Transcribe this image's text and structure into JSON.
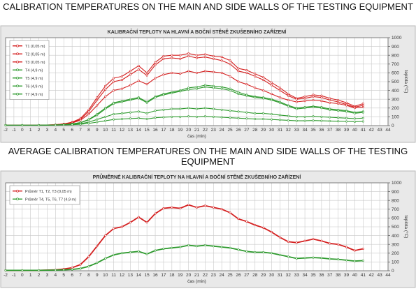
{
  "titles": {
    "top": "CALIBRATION TEMPERATURES ON THE MAIN AND SIDE WALLS OF THE TESTING EQUIPMENT",
    "bottom": "AVERAGE CALIBRATION TEMPERATURES ON THE MAIN AND SIDE WALLS OF THE TESTING EQUIPMENT"
  },
  "chart_data": [
    {
      "type": "line",
      "title": "KALIBRAČNÍ TEPLOTY NA HLAVNÍ A BOČNÍ STĚNĚ ZKUŠEBNÍHO ZAŘÍZENÍ",
      "xlabel": "čas (min)",
      "ylabel": "teplota (°C)",
      "xlim": [
        -2,
        44
      ],
      "ylim": [
        0,
        1000
      ],
      "xticks": [
        -2,
        -1,
        0,
        1,
        2,
        3,
        4,
        5,
        6,
        7,
        8,
        9,
        10,
        11,
        12,
        13,
        14,
        15,
        16,
        17,
        18,
        19,
        20,
        21,
        22,
        23,
        24,
        25,
        26,
        27,
        28,
        29,
        30,
        31,
        32,
        33,
        34,
        35,
        36,
        37,
        38,
        39,
        40,
        41,
        42,
        43,
        44
      ],
      "yticks": [
        0,
        100,
        200,
        300,
        400,
        500,
        600,
        700,
        800,
        900,
        1000
      ],
      "grid": true,
      "legend_position": "top-left",
      "x": [
        -2,
        0,
        2,
        4,
        5,
        6,
        7,
        8,
        9,
        10,
        11,
        12,
        13,
        14,
        15,
        16,
        17,
        18,
        19,
        20,
        21,
        22,
        23,
        24,
        25,
        26,
        27,
        28,
        29,
        30,
        31,
        32,
        33,
        34,
        35,
        36,
        37,
        38,
        39,
        40,
        41
      ],
      "series": [
        {
          "name": "T1 (0,05 m)",
          "color": "#d42020",
          "values": [
            5,
            5,
            5,
            10,
            20,
            40,
            80,
            180,
            320,
            450,
            540,
            560,
            620,
            680,
            600,
            720,
            790,
            800,
            800,
            820,
            800,
            810,
            790,
            780,
            740,
            650,
            630,
            590,
            550,
            490,
            430,
            360,
            310,
            330,
            350,
            340,
            310,
            290,
            260,
            220,
            250
          ]
        },
        {
          "name": "T2 (0,05 m)",
          "color": "#d42020",
          "values": [
            5,
            5,
            5,
            10,
            20,
            35,
            70,
            160,
            290,
            410,
            500,
            520,
            580,
            640,
            570,
            690,
            760,
            770,
            760,
            790,
            770,
            780,
            760,
            740,
            700,
            620,
            600,
            560,
            520,
            460,
            400,
            340,
            300,
            310,
            330,
            320,
            290,
            270,
            240,
            210,
            230
          ]
        },
        {
          "name": "T3 (0,05 m)",
          "color": "#d42020",
          "values": [
            5,
            5,
            5,
            8,
            15,
            30,
            60,
            130,
            230,
            330,
            400,
            420,
            460,
            510,
            470,
            540,
            580,
            600,
            590,
            620,
            600,
            620,
            610,
            600,
            560,
            500,
            470,
            430,
            400,
            360,
            320,
            290,
            270,
            280,
            290,
            280,
            260,
            250,
            230,
            200,
            210
          ]
        },
        {
          "name": "T4 (4,9 m)",
          "color": "#2e9a2e",
          "values": [
            5,
            5,
            5,
            8,
            12,
            20,
            35,
            70,
            130,
            200,
            260,
            280,
            300,
            320,
            270,
            330,
            360,
            380,
            400,
            430,
            440,
            460,
            450,
            440,
            420,
            380,
            350,
            330,
            320,
            300,
            270,
            230,
            200,
            210,
            220,
            210,
            190,
            180,
            170,
            150,
            160
          ]
        },
        {
          "name": "T5 (4,9 m)",
          "color": "#2e9a2e",
          "values": [
            5,
            5,
            5,
            8,
            12,
            18,
            32,
            65,
            120,
            190,
            250,
            270,
            290,
            310,
            260,
            320,
            350,
            370,
            390,
            410,
            420,
            440,
            430,
            420,
            400,
            360,
            340,
            320,
            310,
            290,
            260,
            220,
            190,
            200,
            210,
            200,
            180,
            170,
            160,
            140,
            150
          ]
        },
        {
          "name": "T6 (4,9 m)",
          "color": "#2e9a2e",
          "values": [
            5,
            5,
            5,
            6,
            10,
            14,
            22,
            40,
            70,
            100,
            130,
            140,
            150,
            160,
            140,
            170,
            180,
            190,
            190,
            200,
            190,
            200,
            190,
            180,
            170,
            160,
            150,
            140,
            140,
            130,
            120,
            110,
            100,
            100,
            105,
            100,
            95,
            90,
            85,
            80,
            85
          ]
        },
        {
          "name": "T7 (4,9 m)",
          "color": "#2e9a2e",
          "values": [
            5,
            5,
            5,
            6,
            8,
            10,
            15,
            25,
            40,
            55,
            70,
            75,
            80,
            85,
            75,
            90,
            95,
            100,
            100,
            105,
            100,
            105,
            100,
            95,
            90,
            85,
            80,
            75,
            75,
            70,
            65,
            60,
            55,
            55,
            58,
            55,
            52,
            50,
            48,
            45,
            48
          ]
        }
      ]
    },
    {
      "type": "line",
      "title": "PRŮMĚRNÉ KALIBRAČNÍ TEPLOTY NA HLAVNÍ A BOČNÍ STĚNĚ ZKUŠEBNÍHO ZAŘÍZENÍ",
      "xlabel": "čas (min)",
      "ylabel": "teplota (°C)",
      "xlim": [
        -2,
        44
      ],
      "ylim": [
        0,
        1000
      ],
      "xticks": [
        -2,
        -1,
        0,
        1,
        2,
        3,
        4,
        5,
        6,
        7,
        8,
        9,
        10,
        11,
        12,
        13,
        14,
        15,
        16,
        17,
        18,
        19,
        20,
        21,
        22,
        23,
        24,
        25,
        26,
        27,
        28,
        29,
        30,
        31,
        32,
        33,
        34,
        35,
        36,
        37,
        38,
        39,
        40,
        41,
        42,
        43,
        44
      ],
      "yticks": [
        0,
        100,
        200,
        300,
        400,
        500,
        600,
        700,
        800,
        900,
        1000
      ],
      "grid": true,
      "legend_position": "top-left",
      "x": [
        -2,
        0,
        2,
        4,
        5,
        6,
        7,
        8,
        9,
        10,
        11,
        12,
        13,
        14,
        15,
        16,
        17,
        18,
        19,
        20,
        21,
        22,
        23,
        24,
        25,
        26,
        27,
        28,
        29,
        30,
        31,
        32,
        33,
        34,
        35,
        36,
        37,
        38,
        39,
        40,
        41
      ],
      "series": [
        {
          "name": "Průměr T1, T2, T3 (0,05 m)",
          "color": "#d42020",
          "values": [
            5,
            5,
            5,
            10,
            20,
            35,
            70,
            160,
            280,
            400,
            480,
            500,
            550,
            610,
            550,
            650,
            710,
            720,
            710,
            750,
            720,
            740,
            720,
            700,
            660,
            590,
            560,
            520,
            490,
            440,
            380,
            330,
            320,
            340,
            360,
            340,
            310,
            300,
            270,
            230,
            250
          ]
        },
        {
          "name": "Průměr T4, T5, T6, T7 (4,9 m)",
          "color": "#2e9a2e",
          "values": [
            5,
            5,
            5,
            8,
            10,
            15,
            25,
            50,
            90,
            140,
            180,
            200,
            210,
            220,
            190,
            230,
            250,
            260,
            270,
            290,
            280,
            290,
            280,
            270,
            260,
            240,
            220,
            210,
            210,
            200,
            180,
            160,
            140,
            145,
            150,
            145,
            135,
            130,
            120,
            110,
            115
          ]
        }
      ]
    }
  ]
}
